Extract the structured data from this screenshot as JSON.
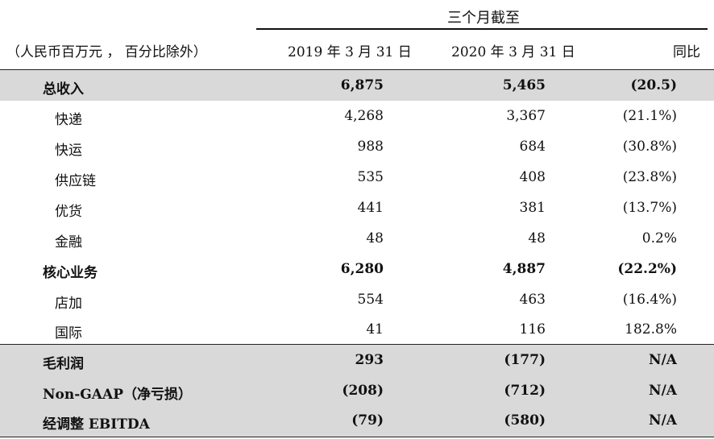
{
  "header": {
    "group": "三个月截至",
    "unit": "（人民币百万元 ， 百分比除外）",
    "col1": "2019 年 3 月 31 日",
    "col2": "2020 年 3 月 31 日",
    "col3": "同比"
  },
  "rows": [
    {
      "label": "总收入",
      "v1": "6,875",
      "v2": "5,465",
      "v3": "(20.5)"
    },
    {
      "label": "快递",
      "v1": "4,268",
      "v2": "3,367",
      "v3": "(21.1%)"
    },
    {
      "label": "快运",
      "v1": "988",
      "v2": "684",
      "v3": "(30.8%)"
    },
    {
      "label": "供应链",
      "v1": "535",
      "v2": "408",
      "v3": "(23.8%)"
    },
    {
      "label": "优货",
      "v1": "441",
      "v2": "381",
      "v3": "(13.7%)"
    },
    {
      "label": "金融",
      "v1": "48",
      "v2": "48",
      "v3": "0.2%"
    },
    {
      "label": "核心业务",
      "v1": "6,280",
      "v2": "4,887",
      "v3": "(22.2%)"
    },
    {
      "label": "店加",
      "v1": "554",
      "v2": "463",
      "v3": "(16.4%)"
    },
    {
      "label": "国际",
      "v1": "41",
      "v2": "116",
      "v3": "182.8%"
    },
    {
      "label": "毛利润",
      "v1": "293",
      "v2": "(177)",
      "v3": "N/A"
    },
    {
      "label": "Non-GAAP（净亏损）",
      "v1": "(208)",
      "v2": "(712)",
      "v3": "N/A"
    },
    {
      "label": "经调整 EBITDA",
      "v1": "(79)",
      "v2": "(580)",
      "v3": "N/A"
    }
  ]
}
